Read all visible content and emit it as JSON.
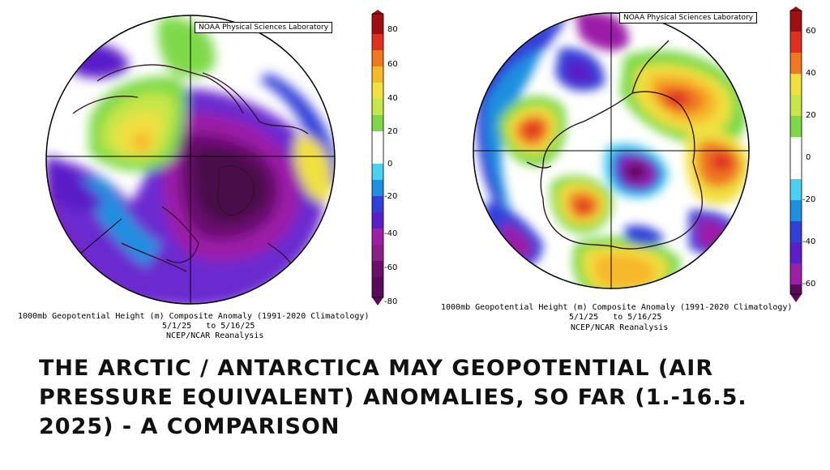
{
  "title": "THE ARCTIC / ANTARCTICA MAY GEOPOTENTIAL (AIR PRESSURE EQUIVALENT) ANOMALIES, SO FAR (1.-16.5. 2025) - A COMPARISON",
  "maps": [
    {
      "region": "Arctic",
      "credit": "NOAA Physical Sciences Laboratory",
      "caption_line1": "1000mb Geopotential Height (m) Composite Anomaly (1991-2020 Climatology)",
      "caption_line2": "5/1/25   to 5/16/25",
      "caption_line3": "NCEP/NCAR Reanalysis",
      "colorbar_ticks": [
        "80",
        "60",
        "40",
        "20",
        "0",
        "-20",
        "-40",
        "-60",
        "-80"
      ]
    },
    {
      "region": "Antarctica",
      "credit": "NOAA Physical Sciences Laboratory",
      "caption_line1": "1000mb Geopotential Height (m) Composite Anomaly (1991-2020 Climatology)",
      "caption_line2": "5/1/25   to 5/16/25",
      "caption_line3": "NCEP/NCAR Reanalysis",
      "colorbar_ticks": [
        "60",
        "40",
        "20",
        "0",
        "-20",
        "-40",
        "-60"
      ]
    }
  ],
  "colors": {
    "scale": [
      "#5a0a5a",
      "#9b1fa8",
      "#5a1fc8",
      "#3340d8",
      "#1f90e0",
      "#4ad0f0",
      "#ffffff",
      "#7ed94a",
      "#c8e64a",
      "#f0e040",
      "#f7b82a",
      "#f07820",
      "#e03020",
      "#a01010"
    ]
  }
}
